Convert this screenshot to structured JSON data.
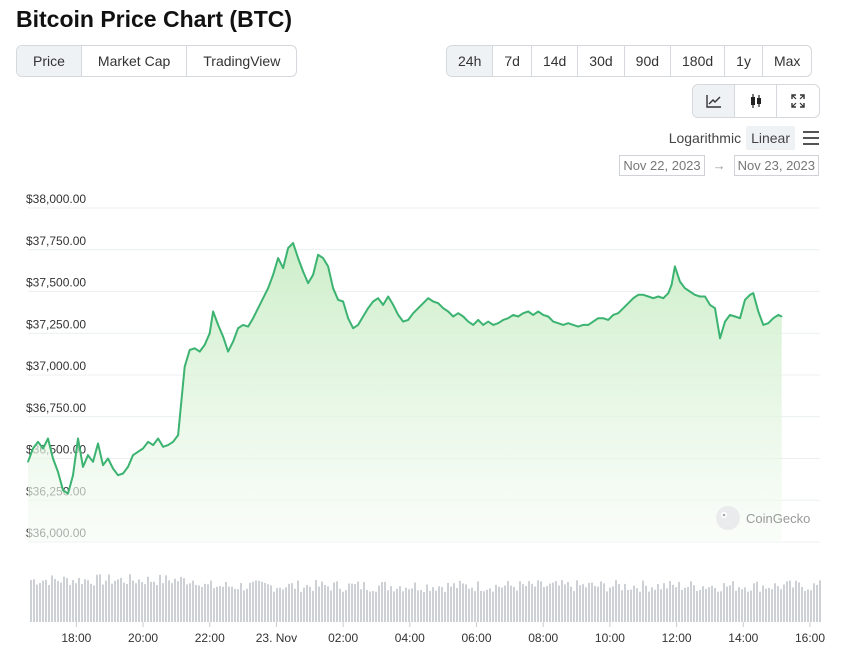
{
  "title": "Bitcoin Price Chart (BTC)",
  "type_tabs": [
    "Price",
    "Market Cap",
    "TradingView"
  ],
  "active_type": "Price",
  "range_tabs": [
    "24h",
    "7d",
    "14d",
    "30d",
    "90d",
    "180d",
    "1y",
    "Max"
  ],
  "active_range": "24h",
  "view_tools": [
    {
      "name": "line-chart-icon",
      "active": true
    },
    {
      "name": "candlestick-icon",
      "active": false
    },
    {
      "name": "expand-icon",
      "active": false
    }
  ],
  "scale": {
    "log_label": "Logarithmic",
    "linear_label": "Linear",
    "active": "Linear"
  },
  "dates": {
    "from": "Nov 22, 2023",
    "arrow": "→",
    "to": "Nov 23, 2023"
  },
  "watermark": "CoinGecko",
  "colors": {
    "line": "#3cb371",
    "fill_top": "#c7ecc3",
    "fill_bottom": "#f6fcf5",
    "volume": "#cdd1d6",
    "grid": "#eceff1"
  },
  "chart_data": {
    "type": "area",
    "series": [
      {
        "values": [
          [
            16.55,
            36480
          ],
          [
            16.7,
            36560
          ],
          [
            16.85,
            36600
          ],
          [
            17.0,
            36560
          ],
          [
            17.15,
            36620
          ],
          [
            17.3,
            36500
          ],
          [
            17.45,
            36420
          ],
          [
            17.6,
            36310
          ],
          [
            17.75,
            36290
          ],
          [
            17.9,
            36400
          ],
          [
            18.05,
            36620
          ],
          [
            18.2,
            36450
          ],
          [
            18.35,
            36520
          ],
          [
            18.5,
            36480
          ],
          [
            18.65,
            36590
          ],
          [
            18.8,
            36460
          ],
          [
            18.95,
            36500
          ],
          [
            19.1,
            36440
          ],
          [
            19.25,
            36400
          ],
          [
            19.4,
            36410
          ],
          [
            19.55,
            36450
          ],
          [
            19.7,
            36520
          ],
          [
            19.85,
            36540
          ],
          [
            20.0,
            36560
          ],
          [
            20.15,
            36600
          ],
          [
            20.3,
            36580
          ],
          [
            20.45,
            36620
          ],
          [
            20.6,
            36570
          ],
          [
            20.75,
            36580
          ],
          [
            20.9,
            36600
          ],
          [
            21.05,
            36640
          ],
          [
            21.25,
            37050
          ],
          [
            21.4,
            37150
          ],
          [
            21.55,
            37160
          ],
          [
            21.7,
            37140
          ],
          [
            21.85,
            37180
          ],
          [
            22.0,
            37250
          ],
          [
            22.1,
            37380
          ],
          [
            22.25,
            37300
          ],
          [
            22.4,
            37230
          ],
          [
            22.55,
            37140
          ],
          [
            22.7,
            37200
          ],
          [
            22.85,
            37280
          ],
          [
            23.0,
            37300
          ],
          [
            23.15,
            37290
          ],
          [
            23.3,
            37340
          ],
          [
            23.45,
            37400
          ],
          [
            23.6,
            37460
          ],
          [
            23.75,
            37520
          ],
          [
            23.9,
            37600
          ],
          [
            24.05,
            37700
          ],
          [
            24.2,
            37640
          ],
          [
            24.35,
            37760
          ],
          [
            24.5,
            37790
          ],
          [
            24.65,
            37700
          ],
          [
            24.8,
            37620
          ],
          [
            24.95,
            37550
          ],
          [
            25.1,
            37600
          ],
          [
            25.25,
            37720
          ],
          [
            25.4,
            37700
          ],
          [
            25.55,
            37650
          ],
          [
            25.7,
            37520
          ],
          [
            25.85,
            37450
          ],
          [
            26.0,
            37440
          ],
          [
            26.15,
            37340
          ],
          [
            26.3,
            37280
          ],
          [
            26.45,
            37300
          ],
          [
            26.6,
            37350
          ],
          [
            26.75,
            37400
          ],
          [
            26.9,
            37440
          ],
          [
            27.05,
            37460
          ],
          [
            27.2,
            37420
          ],
          [
            27.35,
            37470
          ],
          [
            27.5,
            37420
          ],
          [
            27.65,
            37360
          ],
          [
            27.8,
            37320
          ],
          [
            27.95,
            37330
          ],
          [
            28.1,
            37370
          ],
          [
            28.25,
            37400
          ],
          [
            28.4,
            37430
          ],
          [
            28.55,
            37460
          ],
          [
            28.7,
            37440
          ],
          [
            28.85,
            37430
          ],
          [
            29.0,
            37400
          ],
          [
            29.15,
            37380
          ],
          [
            29.3,
            37350
          ],
          [
            29.45,
            37370
          ],
          [
            29.6,
            37350
          ],
          [
            29.75,
            37320
          ],
          [
            29.9,
            37300
          ],
          [
            30.05,
            37330
          ],
          [
            30.2,
            37300
          ],
          [
            30.35,
            37320
          ],
          [
            30.5,
            37300
          ],
          [
            30.65,
            37310
          ],
          [
            30.8,
            37330
          ],
          [
            30.95,
            37340
          ],
          [
            31.1,
            37360
          ],
          [
            31.25,
            37350
          ],
          [
            31.4,
            37370
          ],
          [
            31.55,
            37380
          ],
          [
            31.7,
            37360
          ],
          [
            31.85,
            37380
          ],
          [
            32.0,
            37360
          ],
          [
            32.15,
            37350
          ],
          [
            32.3,
            37320
          ],
          [
            32.45,
            37310
          ],
          [
            32.6,
            37300
          ],
          [
            32.75,
            37310
          ],
          [
            32.9,
            37300
          ],
          [
            33.05,
            37290
          ],
          [
            33.2,
            37300
          ],
          [
            33.35,
            37300
          ],
          [
            33.5,
            37320
          ],
          [
            33.65,
            37340
          ],
          [
            33.8,
            37340
          ],
          [
            33.95,
            37330
          ],
          [
            34.1,
            37360
          ],
          [
            34.25,
            37370
          ],
          [
            34.4,
            37400
          ],
          [
            34.55,
            37430
          ],
          [
            34.7,
            37460
          ],
          [
            34.85,
            37480
          ],
          [
            35.0,
            37480
          ],
          [
            35.15,
            37470
          ],
          [
            35.3,
            37460
          ],
          [
            35.45,
            37470
          ],
          [
            35.6,
            37460
          ],
          [
            35.75,
            37490
          ],
          [
            35.85,
            37540
          ],
          [
            35.95,
            37650
          ],
          [
            36.1,
            37560
          ],
          [
            36.25,
            37520
          ],
          [
            36.4,
            37500
          ],
          [
            36.55,
            37480
          ],
          [
            36.7,
            37470
          ],
          [
            36.85,
            37470
          ],
          [
            37.0,
            37420
          ],
          [
            37.15,
            37400
          ],
          [
            37.3,
            37220
          ],
          [
            37.45,
            37320
          ],
          [
            37.6,
            37360
          ],
          [
            37.75,
            37350
          ],
          [
            37.9,
            37340
          ],
          [
            38.05,
            37450
          ],
          [
            38.2,
            37480
          ],
          [
            38.3,
            37490
          ],
          [
            38.45,
            37380
          ],
          [
            38.6,
            37300
          ],
          [
            38.75,
            37310
          ],
          [
            38.9,
            37340
          ],
          [
            39.05,
            37360
          ],
          [
            39.15,
            37350
          ]
        ]
      }
    ],
    "y_ticks": [
      {
        "value": 38000,
        "label": "$38,000.00"
      },
      {
        "value": 37750,
        "label": "$37,750.00"
      },
      {
        "value": 37500,
        "label": "$37,500.00"
      },
      {
        "value": 37250,
        "label": "$37,250.00"
      },
      {
        "value": 37000,
        "label": "$37,000.00"
      },
      {
        "value": 36750,
        "label": "$36,750.00"
      },
      {
        "value": 36500,
        "label": "$36,500.00"
      },
      {
        "value": 36250,
        "label": "$36,250.00"
      },
      {
        "value": 36000,
        "label": "$36,000.00"
      }
    ],
    "x_ticks": [
      {
        "value": 18,
        "label": "18:00"
      },
      {
        "value": 20,
        "label": "20:00"
      },
      {
        "value": 22,
        "label": "22:00"
      },
      {
        "value": 24,
        "label": "23. Nov"
      },
      {
        "value": 26,
        "label": "02:00"
      },
      {
        "value": 28,
        "label": "04:00"
      },
      {
        "value": 30,
        "label": "06:00"
      },
      {
        "value": 32,
        "label": "08:00"
      },
      {
        "value": 34,
        "label": "10:00"
      },
      {
        "value": 36,
        "label": "12:00"
      },
      {
        "value": 38,
        "label": "14:00"
      },
      {
        "value": 40,
        "label": "16:00"
      }
    ],
    "xlim": [
      16.55,
      40.3
    ],
    "ylim": [
      36000,
      38000
    ],
    "grid": true,
    "volume_bars": true
  }
}
